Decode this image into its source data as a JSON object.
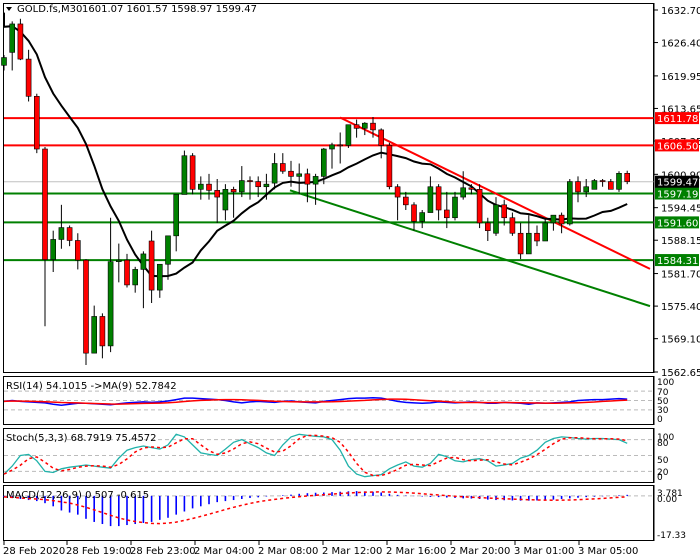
{
  "header": {
    "symbol": "GOLD.fs,M30",
    "ohlc": "1601.07 1601.57 1598.97 1599.47"
  },
  "price_axis": {
    "ticks": [
      "1632.70",
      "1626.40",
      "1619.95",
      "1613.65",
      "1607.35",
      "1600.90",
      "1594.45",
      "1588.15",
      "1581.70",
      "1575.40",
      "1569.10",
      "1562.65"
    ],
    "tick_values": [
      1632.7,
      1626.4,
      1619.95,
      1613.65,
      1607.35,
      1600.9,
      1594.45,
      1588.15,
      1581.7,
      1575.4,
      1569.1,
      1562.65
    ],
    "current_price": "1599.47",
    "levels": [
      {
        "value": 1611.78,
        "label": "1611.78",
        "color": "#ff0000"
      },
      {
        "value": 1606.5,
        "label": "1606.50",
        "color": "#ff0000"
      },
      {
        "value": 1597.19,
        "label": "1597.19",
        "color": "#008000"
      },
      {
        "value": 1591.6,
        "label": "1591.60",
        "color": "#008000"
      },
      {
        "value": 1584.31,
        "label": "1584.31",
        "color": "#008000"
      }
    ]
  },
  "time_axis": [
    "28 Feb 2020",
    "28 Feb 19:00",
    "28 Feb 23:00",
    "2 Mar 04:00",
    "2 Mar 08:00",
    "2 Mar 12:00",
    "2 Mar 16:00",
    "2 Mar 20:00",
    "3 Mar 01:00",
    "3 Mar 05:00"
  ],
  "rsi": {
    "label": "RSI(14) 54.1015  ->MA(9) 52.7842",
    "ticks": [
      "100",
      "70",
      "50",
      "30",
      "0"
    ]
  },
  "stoch": {
    "label": "Stoch(5,3,3) 68.7919 75.4572",
    "ticks": [
      "100",
      "80",
      "50",
      "20",
      "0"
    ]
  },
  "macd": {
    "label": "MACD(12,26,9) 0.507 -0.615",
    "ticks": [
      "3.781",
      "0.00",
      "-17.33"
    ]
  },
  "colors": {
    "bull": "#008000",
    "bear": "#ff0000",
    "ma": "#000000",
    "resistance": "#ff0000",
    "support": "#008000",
    "rsi": "#0000ff",
    "rsi_ma": "#ff0000",
    "stoch_main": "#20b2aa",
    "stoch_signal": "#ff0000",
    "macd_hist": "#0000ff",
    "macd_signal": "#ff0000"
  },
  "chart_data": {
    "type": "candlestick",
    "title": "GOLD.fs,M30",
    "ylim": [
      1562.65,
      1632.7
    ],
    "x_tick_labels": [
      "28 Feb 2020",
      "28 Feb 19:00",
      "28 Feb 23:00",
      "2 Mar 04:00",
      "2 Mar 08:00",
      "2 Mar 12:00",
      "2 Mar 16:00",
      "2 Mar 20:00",
      "3 Mar 01:00",
      "3 Mar 05:00"
    ],
    "horizontal_levels": [
      1611.78,
      1606.5,
      1597.19,
      1591.6,
      1584.31
    ],
    "trendlines": [
      {
        "color": "red",
        "from": [
          340,
          1611.9
        ],
        "to": [
          650,
          1582.6
        ]
      },
      {
        "color": "green",
        "from": [
          290,
          1597.8
        ],
        "to": [
          650,
          1575.4
        ]
      }
    ],
    "candles_ohlc": [
      [
        1622.0,
        1624.0,
        1621.0,
        1623.5
      ],
      [
        1624.5,
        1630.5,
        1621.0,
        1630.0
      ],
      [
        1630.0,
        1631.0,
        1623.0,
        1623.2
      ],
      [
        1623.2,
        1625.0,
        1615.0,
        1616.0
      ],
      [
        1616.0,
        1616.5,
        1605.0,
        1605.8
      ],
      [
        1605.8,
        1606.2,
        1571.5,
        1584.4
      ],
      [
        1584.4,
        1590.0,
        1582.0,
        1588.3
      ],
      [
        1588.3,
        1595.0,
        1586.5,
        1590.6
      ],
      [
        1590.6,
        1591.0,
        1587.0,
        1588.1
      ],
      [
        1588.1,
        1589.5,
        1582.5,
        1584.3
      ],
      [
        1584.3,
        1584.5,
        1564.0,
        1566.3
      ],
      [
        1566.3,
        1575.5,
        1566.3,
        1573.4
      ],
      [
        1573.4,
        1574.0,
        1565.3,
        1567.7
      ],
      [
        1567.7,
        1592.5,
        1566.5,
        1584.0
      ],
      [
        1584.0,
        1587.5,
        1580.0,
        1584.3
      ],
      [
        1584.3,
        1585.5,
        1579.0,
        1579.5
      ],
      [
        1579.5,
        1583.0,
        1578.0,
        1582.5
      ],
      [
        1582.5,
        1586.0,
        1575.0,
        1585.5
      ],
      [
        1588.0,
        1590.0,
        1576.0,
        1578.5
      ],
      [
        1578.5,
        1582.0,
        1577.0,
        1583.5
      ],
      [
        1583.5,
        1587.5,
        1580.5,
        1589.0
      ],
      [
        1589.0,
        1596.0,
        1586.0,
        1597.0
      ],
      [
        1597.0,
        1605.5,
        1597.0,
        1604.5
      ],
      [
        1604.5,
        1605.0,
        1597.0,
        1598.0
      ],
      [
        1598.0,
        1600.5,
        1596.0,
        1599.0
      ],
      [
        1599.0,
        1601.0,
        1596.0,
        1597.8
      ],
      [
        1597.8,
        1600.0,
        1591.5,
        1596.5
      ],
      [
        1594.0,
        1599.0,
        1592.0,
        1598.0
      ],
      [
        1598.0,
        1598.5,
        1592.5,
        1597.5
      ],
      [
        1597.5,
        1602.5,
        1596.5,
        1599.7
      ],
      [
        1599.7,
        1600.5,
        1596.0,
        1599.5
      ],
      [
        1599.5,
        1600.5,
        1596.5,
        1598.5
      ],
      [
        1598.5,
        1601.0,
        1596.0,
        1599.0
      ],
      [
        1599.2,
        1605.0,
        1598.0,
        1603.0
      ],
      [
        1603.0,
        1605.0,
        1601.0,
        1601.5
      ],
      [
        1601.5,
        1603.5,
        1598.5,
        1600.5
      ],
      [
        1600.5,
        1603.0,
        1597.0,
        1601.0
      ],
      [
        1601.0,
        1602.0,
        1595.5,
        1599.0
      ],
      [
        1599.0,
        1601.0,
        1595.0,
        1600.5
      ],
      [
        1600.5,
        1606.0,
        1599.0,
        1605.8
      ],
      [
        1605.8,
        1607.0,
        1602.0,
        1606.6
      ],
      [
        1606.6,
        1609.0,
        1603.0,
        1606.5
      ],
      [
        1606.5,
        1610.0,
        1606.0,
        1610.5
      ],
      [
        1610.5,
        1611.5,
        1608.0,
        1609.8
      ],
      [
        1609.8,
        1611.0,
        1608.5,
        1610.8
      ],
      [
        1610.8,
        1612.0,
        1608.0,
        1609.5
      ],
      [
        1609.5,
        1609.8,
        1604.0,
        1606.5
      ],
      [
        1606.5,
        1607.0,
        1598.0,
        1598.5
      ],
      [
        1598.5,
        1599.0,
        1592.0,
        1596.5
      ],
      [
        1596.5,
        1597.5,
        1594.0,
        1595.0
      ],
      [
        1595.0,
        1595.5,
        1590.0,
        1591.8
      ],
      [
        1591.8,
        1594.0,
        1590.5,
        1593.5
      ],
      [
        1593.5,
        1600.5,
        1594.0,
        1598.5
      ],
      [
        1598.5,
        1599.0,
        1592.0,
        1594.0
      ],
      [
        1594.0,
        1597.5,
        1590.5,
        1592.5
      ],
      [
        1592.5,
        1597.5,
        1592.0,
        1596.5
      ],
      [
        1596.5,
        1601.5,
        1596.0,
        1598.3
      ],
      [
        1598.3,
        1599.0,
        1597.0,
        1598.0
      ],
      [
        1598.0,
        1599.0,
        1590.5,
        1591.5
      ],
      [
        1591.5,
        1592.5,
        1588.0,
        1590.0
      ],
      [
        1589.5,
        1596.5,
        1589.0,
        1595.0
      ],
      [
        1595.0,
        1596.0,
        1591.0,
        1592.5
      ],
      [
        1592.5,
        1593.5,
        1589.0,
        1589.5
      ],
      [
        1589.5,
        1591.5,
        1584.5,
        1585.5
      ],
      [
        1585.5,
        1593.0,
        1585.5,
        1589.5
      ],
      [
        1589.5,
        1591.0,
        1587.0,
        1588.0
      ],
      [
        1588.0,
        1592.5,
        1588.5,
        1591.5
      ],
      [
        1591.5,
        1593.0,
        1590.0,
        1593.0
      ],
      [
        1593.0,
        1593.5,
        1589.5,
        1591.3
      ],
      [
        1591.3,
        1600.0,
        1591.0,
        1599.5
      ],
      [
        1599.5,
        1600.5,
        1595.5,
        1597.5
      ],
      [
        1597.5,
        1600.0,
        1596.5,
        1598.5
      ],
      [
        1598.0,
        1600.0,
        1598.0,
        1599.7
      ],
      [
        1599.7,
        1600.0,
        1598.5,
        1599.5
      ],
      [
        1599.5,
        1600.0,
        1598.5,
        1598.0
      ],
      [
        1598.0,
        1601.5,
        1597.5,
        1601.1
      ],
      [
        1601.1,
        1601.6,
        1599.0,
        1599.5
      ]
    ],
    "rsi_range": [
      0,
      100
    ],
    "stoch_range": [
      0,
      100
    ],
    "macd_range": [
      -17.33,
      3.781
    ]
  }
}
